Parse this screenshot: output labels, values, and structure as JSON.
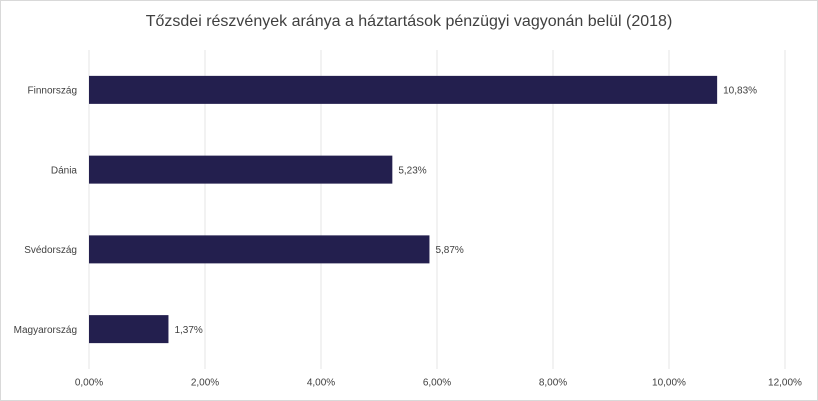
{
  "chart_data": {
    "type": "hbar",
    "title": "Tőzsdei részvények aránya a háztartások pénzügyi vagyonán belül (2018)",
    "categories": [
      "Finnország",
      "Dánia",
      "Svédország",
      "Magyarország"
    ],
    "values": [
      10.83,
      5.23,
      5.87,
      1.37
    ],
    "value_labels": [
      "10,83%",
      "5,23%",
      "5,87%",
      "1,37%"
    ],
    "color": "#231f4e",
    "xlim": [
      0,
      12
    ],
    "xticks": [
      {
        "value": 0,
        "label": "0,00%"
      },
      {
        "value": 2,
        "label": "2,00%"
      },
      {
        "value": 4,
        "label": "4,00%"
      },
      {
        "value": 6,
        "label": "6,00%"
      },
      {
        "value": 8,
        "label": "8,00%"
      },
      {
        "value": 10,
        "label": "10,00%"
      },
      {
        "value": 12,
        "label": "12,00%"
      }
    ],
    "grid": true
  }
}
